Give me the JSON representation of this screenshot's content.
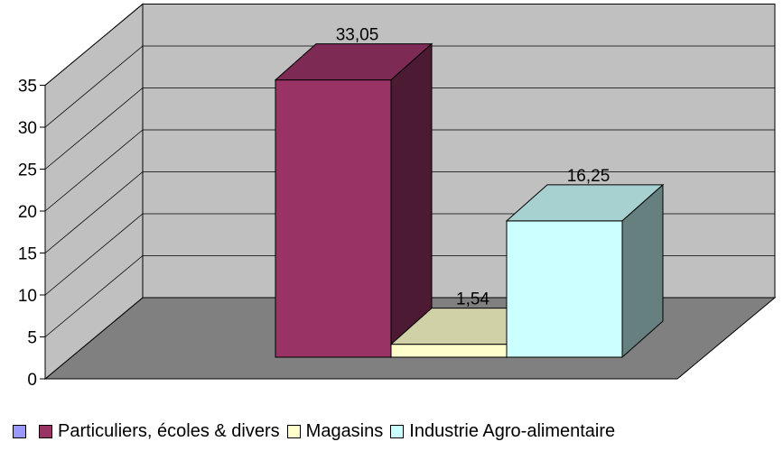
{
  "chart_data": {
    "type": "bar",
    "style": "3d-column",
    "categories": [
      "",
      "Particuliers, écoles & divers",
      "Magasins",
      "Industrie Agro-alimentaire"
    ],
    "values": [
      null,
      33.05,
      1.54,
      16.25
    ],
    "value_labels": [
      "",
      "33,05",
      "1,54",
      "16,25"
    ],
    "colors": [
      "#9999ff",
      "#993366",
      "#ffffcc",
      "#ccffff"
    ],
    "yticks": [
      "0",
      "5",
      "10",
      "15",
      "20",
      "25",
      "30",
      "35"
    ],
    "ylim": [
      0,
      35
    ],
    "grid": true,
    "legend_position": "bottom",
    "wall_color": "#c0c0c0",
    "floor_color": "#808080"
  }
}
